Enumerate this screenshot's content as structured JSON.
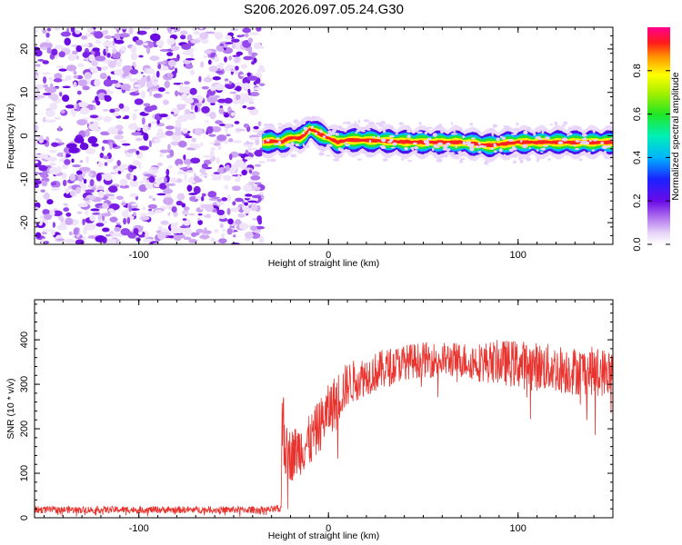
{
  "title": "S206.2026.097.05.24.G30",
  "chart_data": [
    {
      "type": "heatmap",
      "name": "spectrogram",
      "xlabel": "Height of straight line (km)",
      "ylabel": "Frequency (Hz)",
      "xlim": [
        -155,
        150
      ],
      "ylim": [
        -25,
        25
      ],
      "xticks": [
        -100,
        0,
        100
      ],
      "yticks": [
        -20,
        -10,
        0,
        10,
        20
      ],
      "noise_region_x": [
        -155,
        -35
      ],
      "signal_track": {
        "x": [
          -35,
          -30,
          -25,
          -20,
          -15,
          -12,
          -10,
          -8,
          -5,
          0,
          5,
          10,
          20,
          30,
          40,
          50,
          60,
          70,
          75,
          80,
          85,
          90,
          95,
          100,
          110,
          120,
          130,
          140,
          150
        ],
        "freq": [
          -1.5,
          -1.2,
          -1.5,
          -0.5,
          -0.5,
          0.5,
          1.5,
          1.2,
          0.5,
          -0.5,
          -1.5,
          -1,
          -1,
          -1.2,
          -1.4,
          -1.5,
          -1.5,
          -1.5,
          -1.8,
          -2,
          -2.2,
          -2,
          -1.7,
          -1.5,
          -1.5,
          -1.5,
          -1.5,
          -1.5,
          -1.5
        ]
      },
      "colorbar": {
        "label": "Normalized spectral amplitude",
        "range": [
          0,
          1
        ],
        "ticks": [
          0.0,
          0.2,
          0.4,
          0.6,
          0.8
        ],
        "tick_labels": [
          "0.0",
          "0.2",
          "0.4",
          "0.6",
          "0.8"
        ]
      }
    },
    {
      "type": "line",
      "name": "snr",
      "xlabel": "Height of straight line (km)",
      "ylabel": "SNR (10 * v/v)",
      "xlim": [
        -155,
        150
      ],
      "ylim": [
        0,
        490
      ],
      "xticks": [
        -100,
        0,
        100
      ],
      "yticks": [
        0,
        100,
        200,
        300,
        400
      ],
      "series": [
        {
          "name": "SNR",
          "color": "#e8332e",
          "x": [
            -155,
            -120,
            -80,
            -40,
            -30,
            -25,
            -24,
            -23,
            -20,
            -15,
            -10,
            -5,
            0,
            5,
            10,
            20,
            30,
            40,
            50,
            60,
            70,
            80,
            90,
            100,
            110,
            120,
            130,
            140,
            150
          ],
          "base": [
            18,
            18,
            18,
            18,
            18,
            20,
            300,
            150,
            140,
            155,
            170,
            205,
            240,
            270,
            300,
            320,
            335,
            350,
            355,
            355,
            355,
            350,
            350,
            345,
            340,
            335,
            330,
            330,
            325
          ],
          "amp": [
            8,
            8,
            8,
            8,
            8,
            10,
            160,
            60,
            60,
            60,
            60,
            60,
            60,
            60,
            50,
            45,
            45,
            40,
            40,
            40,
            40,
            45,
            50,
            55,
            55,
            55,
            55,
            55,
            55
          ]
        }
      ]
    }
  ]
}
